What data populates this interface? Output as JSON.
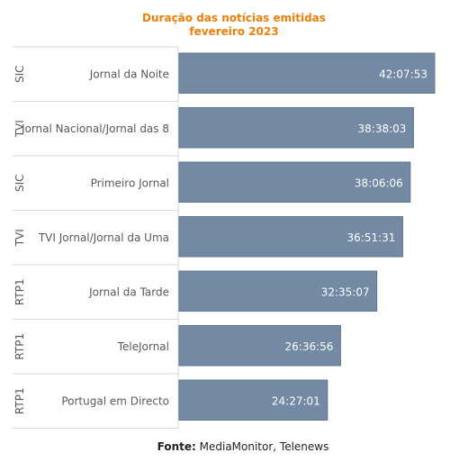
{
  "title_line1": "Duração das notícias emitidas",
  "title_line2": "fevereiro 2023",
  "source_label": "Fonte:",
  "source_text": " MediaMonitor, Telenews",
  "colors": {
    "bar": "#7389a4",
    "bar_stroke": "#5f7590",
    "title": "#f07f09",
    "grid": "#d9d9d9",
    "label": "#595959"
  },
  "chart_data": {
    "type": "bar",
    "orientation": "horizontal",
    "title": "Duração das notícias emitidas fevereiro 2023",
    "categories": [
      {
        "channel": "SIC",
        "program": "Jornal da Noite",
        "value_label": "42:07:53",
        "seconds": 151673
      },
      {
        "channel": "TVI",
        "program": "Jornal Nacional/Jornal das 8",
        "value_label": "38:38:03",
        "seconds": 139083
      },
      {
        "channel": "SIC",
        "program": "Primeiro Jornal",
        "value_label": "38:06:06",
        "seconds": 137166
      },
      {
        "channel": "TVI",
        "program": "TVI Jornal/Jornal da Uma",
        "value_label": "36:51:31",
        "seconds": 132691
      },
      {
        "channel": "RTP1",
        "program": "Jornal da Tarde",
        "value_label": "32:35:07",
        "seconds": 117307
      },
      {
        "channel": "RTP1",
        "program": "TeleJornal",
        "value_label": "26:36:56",
        "seconds": 95816
      },
      {
        "channel": "RTP1",
        "program": "Portugal em Directo",
        "value_label": "24:27:01",
        "seconds": 88021
      }
    ],
    "xlim": [
      0,
      151673
    ],
    "grid": false,
    "legend": "none"
  }
}
